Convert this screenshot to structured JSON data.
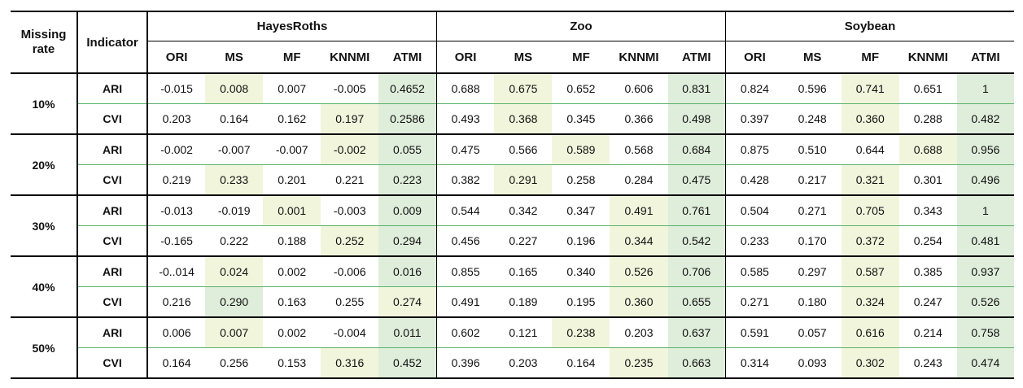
{
  "header": {
    "missing_rate": "Missing rate",
    "indicator": "Indicator",
    "datasets": [
      "HayesRoths",
      "Zoo",
      "Soybean"
    ],
    "methods": [
      "ORI",
      "MS",
      "MF",
      "KNNMI",
      "ATMI"
    ]
  },
  "colors": {
    "highlight_light": "#f1f5dc",
    "highlight_green": "#dfeddb",
    "row_divider_green": "#5ab26a"
  },
  "rows": [
    {
      "rate": "10%",
      "ARI": {
        "values": [
          "-0.015",
          "0.008",
          "0.007",
          "-0.005",
          "0.4652",
          "0.688",
          "0.675",
          "0.652",
          "0.606",
          "0.831",
          "0.824",
          "0.596",
          "0.741",
          "0.651",
          "1"
        ],
        "shade": [
          "",
          "y",
          "",
          "",
          "g",
          "",
          "y",
          "",
          "",
          "g",
          "",
          "",
          "y",
          "",
          "g"
        ]
      },
      "CVI": {
        "values": [
          "0.203",
          "0.164",
          "0.162",
          "0.197",
          "0.2586",
          "0.493",
          "0.368",
          "0.345",
          "0.366",
          "0.498",
          "0.397",
          "0.248",
          "0.360",
          "0.288",
          "0.482"
        ],
        "shade": [
          "",
          "",
          "",
          "y",
          "g",
          "",
          "y",
          "",
          "",
          "g",
          "",
          "",
          "y",
          "",
          "g"
        ]
      }
    },
    {
      "rate": "20%",
      "ARI": {
        "values": [
          "-0.002",
          "-0.007",
          "-0.007",
          "-0.002",
          "0.055",
          "0.475",
          "0.566",
          "0.589",
          "0.568",
          "0.684",
          "0.875",
          "0.510",
          "0.644",
          "0.688",
          "0.956"
        ],
        "shade": [
          "",
          "",
          "",
          "y",
          "g",
          "",
          "",
          "y",
          "",
          "g",
          "",
          "",
          "",
          "y",
          "g"
        ]
      },
      "CVI": {
        "values": [
          "0.219",
          "0.233",
          "0.201",
          "0.221",
          "0.223",
          "0.382",
          "0.291",
          "0.258",
          "0.284",
          "0.475",
          "0.428",
          "0.217",
          "0.321",
          "0.301",
          "0.496"
        ],
        "shade": [
          "",
          "y",
          "",
          "",
          "g",
          "",
          "y",
          "",
          "",
          "g",
          "",
          "",
          "y",
          "",
          "g"
        ]
      }
    },
    {
      "rate": "30%",
      "ARI": {
        "values": [
          "-0.013",
          "-0.019",
          "0.001",
          "-0.003",
          "0.009",
          "0.544",
          "0.342",
          "0.347",
          "0.491",
          "0.761",
          "0.504",
          "0.271",
          "0.705",
          "0.343",
          "1"
        ],
        "shade": [
          "",
          "",
          "y",
          "",
          "g",
          "",
          "",
          "",
          "y",
          "g",
          "",
          "",
          "y",
          "",
          "g"
        ]
      },
      "CVI": {
        "values": [
          "-0.165",
          "0.222",
          "0.188",
          "0.252",
          "0.294",
          "0.456",
          "0.227",
          "0.196",
          "0.344",
          "0.542",
          "0.233",
          "0.170",
          "0.372",
          "0.254",
          "0.481"
        ],
        "shade": [
          "",
          "",
          "",
          "y",
          "g",
          "",
          "",
          "",
          "y",
          "g",
          "",
          "",
          "y",
          "",
          "g"
        ]
      }
    },
    {
      "rate": "40%",
      "ARI": {
        "values": [
          "-0..014",
          "0.024",
          "0.002",
          "-0.006",
          "0.016",
          "0.855",
          "0.165",
          "0.340",
          "0.526",
          "0.706",
          "0.585",
          "0.297",
          "0.587",
          "0.385",
          "0.937"
        ],
        "shade": [
          "",
          "y",
          "",
          "",
          "g",
          "",
          "",
          "",
          "y",
          "g",
          "",
          "",
          "y",
          "",
          "g"
        ]
      },
      "CVI": {
        "values": [
          "0.216",
          "0.290",
          "0.163",
          "0.255",
          "0.274",
          "0.491",
          "0.189",
          "0.195",
          "0.360",
          "0.655",
          "0.271",
          "0.180",
          "0.324",
          "0.247",
          "0.526"
        ],
        "shade": [
          "",
          "g",
          "",
          "",
          "y",
          "",
          "",
          "",
          "y",
          "g",
          "",
          "",
          "y",
          "",
          "g"
        ]
      }
    },
    {
      "rate": "50%",
      "ARI": {
        "values": [
          "0.006",
          "0.007",
          "0.002",
          "-0.004",
          "0.011",
          "0.602",
          "0.121",
          "0.238",
          "0.203",
          "0.637",
          "0.591",
          "0.057",
          "0.616",
          "0.214",
          "0.758"
        ],
        "shade": [
          "",
          "y",
          "",
          "",
          "g",
          "",
          "",
          "y",
          "",
          "g",
          "",
          "",
          "y",
          "",
          "g"
        ]
      },
      "CVI": {
        "values": [
          "0.164",
          "0.256",
          "0.153",
          "0.316",
          "0.452",
          "0.396",
          "0.203",
          "0.164",
          "0.235",
          "0.663",
          "0.314",
          "0.093",
          "0.302",
          "0.243",
          "0.474"
        ],
        "shade": [
          "",
          "",
          "",
          "y",
          "g",
          "",
          "",
          "",
          "y",
          "g",
          "",
          "",
          "y",
          "",
          "g"
        ]
      }
    }
  ]
}
